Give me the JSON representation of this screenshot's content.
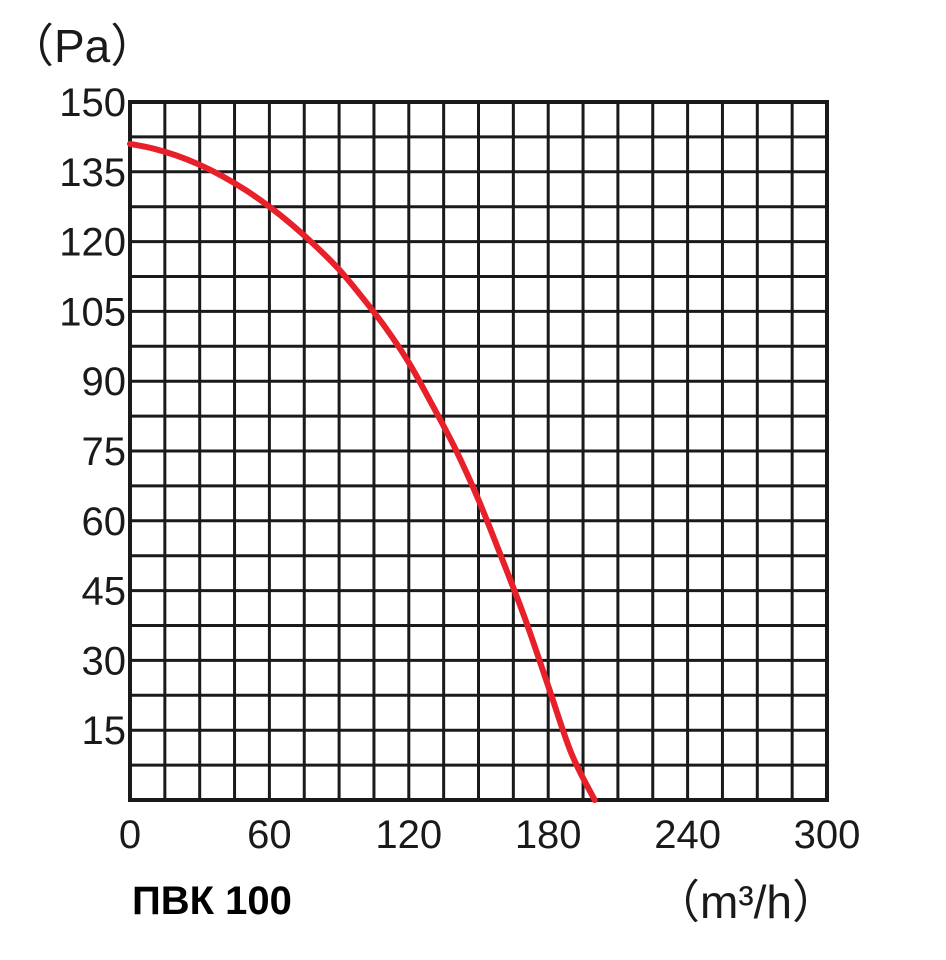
{
  "chart_data": {
    "type": "line",
    "title": "",
    "model_label": "ПВК 100",
    "ylabel": "（Pa）",
    "xlabel": "（m³/h）",
    "xlim": [
      0,
      300
    ],
    "ylim": [
      0,
      150
    ],
    "x_ticks": [
      "0",
      "60",
      "120",
      "180",
      "240",
      "300"
    ],
    "y_ticks": [
      "150",
      "135",
      "120",
      "105",
      "90",
      "75",
      "60",
      "45",
      "30",
      "15"
    ],
    "grid": true,
    "series": [
      {
        "color": "#e8202a",
        "x": [
          0,
          10,
          20,
          30,
          40,
          50,
          60,
          70,
          80,
          90,
          100,
          110,
          120,
          130,
          140,
          150,
          160,
          170,
          180,
          190,
          200
        ],
        "y": [
          141,
          140,
          138.5,
          136.5,
          134,
          131,
          127.5,
          123.5,
          119,
          114,
          108,
          101.5,
          94,
          85,
          75.5,
          64.5,
          52,
          39,
          24.5,
          10,
          0
        ]
      }
    ],
    "colors": {
      "grid": "#1a1a1a",
      "curve": "#e8202a",
      "text": "#1a1a1a"
    }
  }
}
